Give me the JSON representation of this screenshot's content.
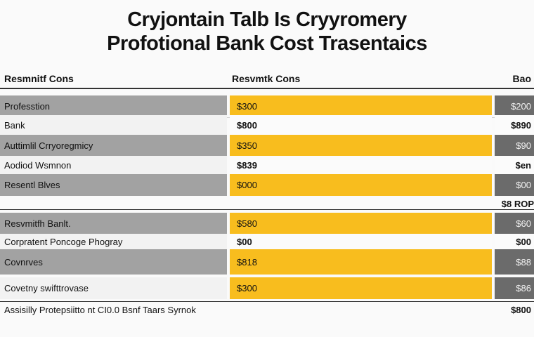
{
  "title": {
    "line1": "Cryjontain Talb Is Cryyromery",
    "line2": "Profotional Bank Cost Trasentaics"
  },
  "headers": {
    "col1": "Resmnitf Cons",
    "col2": "Resvmtk Cons",
    "col3": "Bao"
  },
  "section1": [
    {
      "label": "Professtion",
      "value": "$300",
      "right": "$200",
      "style": "dark"
    },
    {
      "label": "Bank",
      "value": "$800",
      "right": "$890",
      "style": "light"
    },
    {
      "label": "Auttimlil Crryoregmicy",
      "value": "$350",
      "right": "$90",
      "style": "dark"
    },
    {
      "label": "Aodiod Wsmnon",
      "value": "$839",
      "right": "$en",
      "style": "light"
    },
    {
      "label": "Resentl Blves",
      "value": "$000",
      "right": "$00",
      "style": "dark"
    }
  ],
  "corner_label": "$8 ROP",
  "section2": [
    {
      "label": "Resvmitfh Banlt.",
      "value": "$580",
      "right": "$60",
      "style": "dark"
    },
    {
      "label": "Corpratent Poncoge Phogray",
      "value": "$00",
      "right": "$00",
      "style": "light"
    },
    {
      "label": "Covnrves",
      "value": "$818",
      "right": "$88",
      "style": "dark"
    },
    {
      "label": "Covetny swifttrovase",
      "value": "$300",
      "right": "$86",
      "style": "dark"
    }
  ],
  "footer": {
    "text": "Assisilly Protepsiitto nt CI0.0 Bsnf Taars Syrnok",
    "value": "$800"
  }
}
